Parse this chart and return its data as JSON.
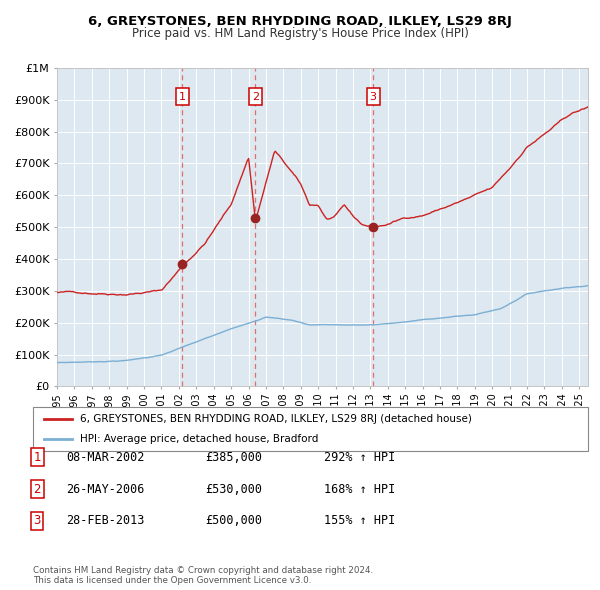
{
  "title1": "6, GREYSTONES, BEN RHYDDING ROAD, ILKLEY, LS29 8RJ",
  "title2": "Price paid vs. HM Land Registry's House Price Index (HPI)",
  "legend_label1": "6, GREYSTONES, BEN RHYDDING ROAD, ILKLEY, LS29 8RJ (detached house)",
  "legend_label2": "HPI: Average price, detached house, Bradford",
  "sales": [
    {
      "num": 1,
      "date_label": "08-MAR-2002",
      "date_x": 2002.19,
      "price": 385000,
      "pct": "292%"
    },
    {
      "num": 2,
      "date_label": "26-MAY-2006",
      "date_x": 2006.4,
      "price": 530000,
      "pct": "168%"
    },
    {
      "num": 3,
      "date_label": "28-FEB-2013",
      "date_x": 2013.16,
      "price": 500000,
      "pct": "155%"
    }
  ],
  "hpi_color": "#7bafd4",
  "price_color": "#cc2222",
  "dashed_color": "#e07070",
  "background_color": "#dde8f0",
  "grid_color": "#ffffff",
  "ylim": [
    0,
    1000000
  ],
  "xlim_start": 1995.0,
  "xlim_end": 2025.5,
  "footnote1": "Contains HM Land Registry data © Crown copyright and database right 2024.",
  "footnote2": "This data is licensed under the Open Government Licence v3.0."
}
